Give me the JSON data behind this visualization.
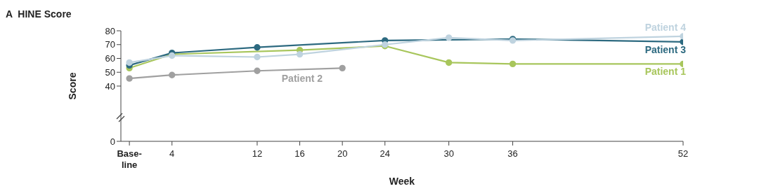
{
  "chart_data": {
    "type": "line",
    "title": "A  HINE Score",
    "xlabel": "Week",
    "ylabel": "Score",
    "xlim": [
      -0.8,
      52
    ],
    "xticks": [
      {
        "value": 0,
        "label": "Base-\nline"
      },
      4,
      12,
      16,
      20,
      24,
      30,
      36,
      52
    ],
    "ylim": [
      0,
      80
    ],
    "yticks": [
      0,
      40,
      50,
      60,
      70,
      80
    ],
    "grid": false,
    "legend": false,
    "marker": "circle",
    "line_style": "solid",
    "series": [
      {
        "name": "Patient 1",
        "color": "#a8c65c",
        "x": [
          0,
          4,
          16,
          24,
          30,
          36,
          52
        ],
        "values": [
          53,
          63,
          66,
          69,
          57,
          56,
          56
        ]
      },
      {
        "name": "Patient 2",
        "color": "#a0a0a0",
        "x": [
          0,
          4,
          12,
          20
        ],
        "values": [
          45.5,
          48,
          51,
          53
        ]
      },
      {
        "name": "Patient 3",
        "color": "#2d6a80",
        "x": [
          0,
          4,
          12,
          24,
          36,
          52
        ],
        "values": [
          55,
          64,
          68,
          73,
          74,
          72
        ]
      },
      {
        "name": "Patient 4",
        "color": "#bfd3df",
        "x": [
          0,
          4,
          12,
          16,
          24,
          30,
          36,
          52
        ],
        "values": [
          57,
          62,
          61,
          63,
          70,
          75,
          73,
          76
        ]
      }
    ]
  }
}
